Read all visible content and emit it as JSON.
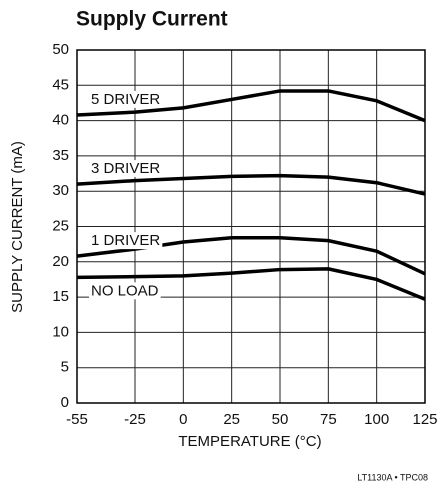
{
  "chart_data": {
    "type": "line",
    "title": "Supply Current",
    "x_label": "TEMPERATURE (°C)",
    "y_label": "SUPPLY CURRENT (mA)",
    "footer": "LT1130A • TPC08",
    "x": [
      -55,
      -25,
      0,
      25,
      50,
      75,
      100,
      125
    ],
    "series": [
      {
        "name": "5 DRIVER",
        "color": "#000000",
        "values": [
          40.8,
          41.2,
          41.8,
          43,
          44.2,
          44.2,
          42.8,
          40
        ]
      },
      {
        "name": "3 DRIVER",
        "color": "#000000",
        "values": [
          31,
          31.5,
          31.8,
          32.1,
          32.2,
          32,
          31.2,
          29.6
        ]
      },
      {
        "name": "1 DRIVER",
        "color": "#000000",
        "values": [
          20.8,
          21.8,
          22.8,
          23.4,
          23.4,
          23,
          21.5,
          18.3
        ]
      },
      {
        "name": "NO LOAD",
        "color": "#000000",
        "values": [
          17.8,
          17.9,
          18,
          18.4,
          18.9,
          19,
          17.5,
          14.7
        ]
      }
    ],
    "xlim": [
      -55,
      125
    ],
    "xticks": [
      -55,
      -25,
      0,
      25,
      50,
      75,
      100,
      125
    ],
    "ylim": [
      0,
      50
    ],
    "yticks": [
      0,
      5,
      10,
      15,
      20,
      25,
      30,
      35,
      40,
      45,
      50
    ],
    "grid": true
  }
}
